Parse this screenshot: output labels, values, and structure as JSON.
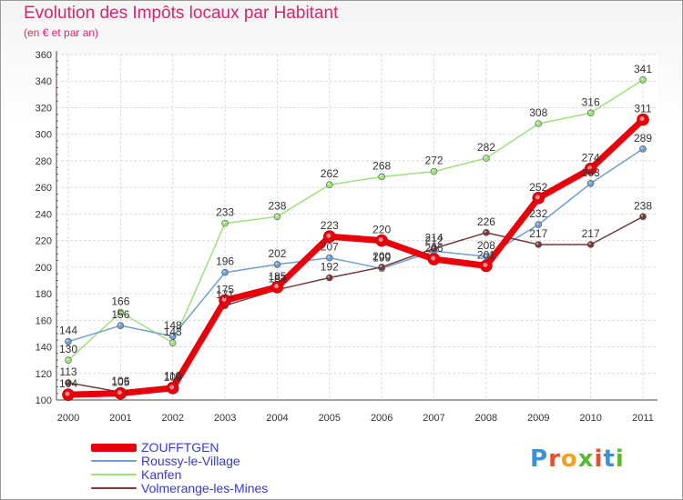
{
  "header": {
    "title": "Evolution des Impôts locaux par Habitant",
    "subtitle": "(en € et par an)"
  },
  "logo": {
    "text": "Proxiti",
    "colors": [
      "#3d8fd9",
      "#e8502d",
      "#f2a21a",
      "#5cb832",
      "#e8502d",
      "#3d8fd9",
      "#5cb832"
    ]
  },
  "chart_data": {
    "type": "line",
    "title": "Evolution des Impôts locaux par Habitant",
    "subtitle": "(en € et par an)",
    "xlabel": "",
    "ylabel": "",
    "categories": [
      "2000",
      "2001",
      "2002",
      "2003",
      "2004",
      "2005",
      "2006",
      "2007",
      "2008",
      "2009",
      "2010",
      "2011"
    ],
    "ylim": [
      100,
      360
    ],
    "yticks": [
      100,
      120,
      140,
      160,
      180,
      200,
      220,
      240,
      260,
      280,
      300,
      320,
      340,
      360
    ],
    "grid": true,
    "legend": "bottom-left",
    "series": [
      {
        "name": "ZOUFFTGEN",
        "color": "#e8000b",
        "values": [
          104,
          105,
          109,
          175,
          185,
          223,
          220,
          206,
          201,
          252,
          274,
          311
        ],
        "labels": [
          "104",
          "105",
          "109",
          "175",
          "185",
          "223",
          "220",
          "206",
          "201",
          "252",
          "274",
          "311"
        ]
      },
      {
        "name": "Roussy-le-Village",
        "color": "#6f9fcf",
        "values": [
          144,
          156,
          148,
          196,
          202,
          207,
          199,
          212,
          208,
          232,
          263,
          289
        ],
        "labels": [
          "144",
          "156",
          "148",
          "196",
          "202",
          "207",
          "199",
          "212",
          "208",
          "232",
          "263",
          "289"
        ]
      },
      {
        "name": "Kanfen",
        "color": "#9ee07c",
        "values": [
          130,
          166,
          143,
          233,
          238,
          262,
          268,
          272,
          282,
          308,
          316,
          341
        ],
        "labels": [
          "130",
          "166",
          "143",
          "233",
          "238",
          "262",
          "268",
          "272",
          "282",
          "308",
          "316",
          "341"
        ]
      },
      {
        "name": "Volmerange-les-Mines",
        "color": "#7a3a3a",
        "values": [
          113,
          106,
          110,
          171,
          183,
          192,
          200,
          214,
          226,
          217,
          217,
          238
        ],
        "labels": [
          "113",
          "106",
          "110",
          "171",
          "183",
          "192",
          "200",
          "214",
          "226",
          "217",
          "217",
          "238"
        ]
      }
    ]
  }
}
